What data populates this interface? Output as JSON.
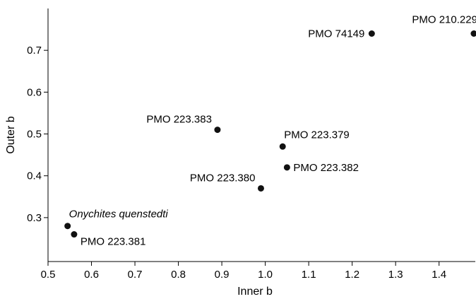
{
  "chart_data": {
    "type": "scatter",
    "xlabel": "Inner b",
    "ylabel": "Outer b",
    "xlim": [
      0.5,
      1.485
    ],
    "ylim": [
      0.195,
      0.8
    ],
    "x_ticks": [
      "0.5",
      "0.6",
      "0.7",
      "0.8",
      "0.9",
      "1.0",
      "1.1",
      "1.2",
      "1.3",
      "1.4"
    ],
    "y_ticks": [
      "0.3",
      "0.4",
      "0.5",
      "0.6",
      "0.7"
    ],
    "grid": false,
    "points": [
      {
        "label": "PMO 210.229",
        "x": 1.48,
        "y": 0.74,
        "label_pos": "above-left",
        "italic": false
      },
      {
        "label": "PMO 74149",
        "x": 1.245,
        "y": 0.74,
        "label_pos": "left",
        "italic": false
      },
      {
        "label": "PMO 223.383",
        "x": 0.89,
        "y": 0.51,
        "label_pos": "above-left",
        "italic": false
      },
      {
        "label": "PMO 223.379",
        "x": 1.04,
        "y": 0.47,
        "label_pos": "above-right",
        "italic": false
      },
      {
        "label": "PMO 223.382",
        "x": 1.05,
        "y": 0.42,
        "label_pos": "right",
        "italic": false
      },
      {
        "label": "PMO 223.380",
        "x": 0.99,
        "y": 0.37,
        "label_pos": "above-left",
        "italic": false
      },
      {
        "label": "Onychites quenstedti",
        "x": 0.545,
        "y": 0.28,
        "label_pos": "above-right",
        "italic": true
      },
      {
        "label": "PMO 223.381",
        "x": 0.56,
        "y": 0.26,
        "label_pos": "right",
        "italic": false
      }
    ]
  }
}
